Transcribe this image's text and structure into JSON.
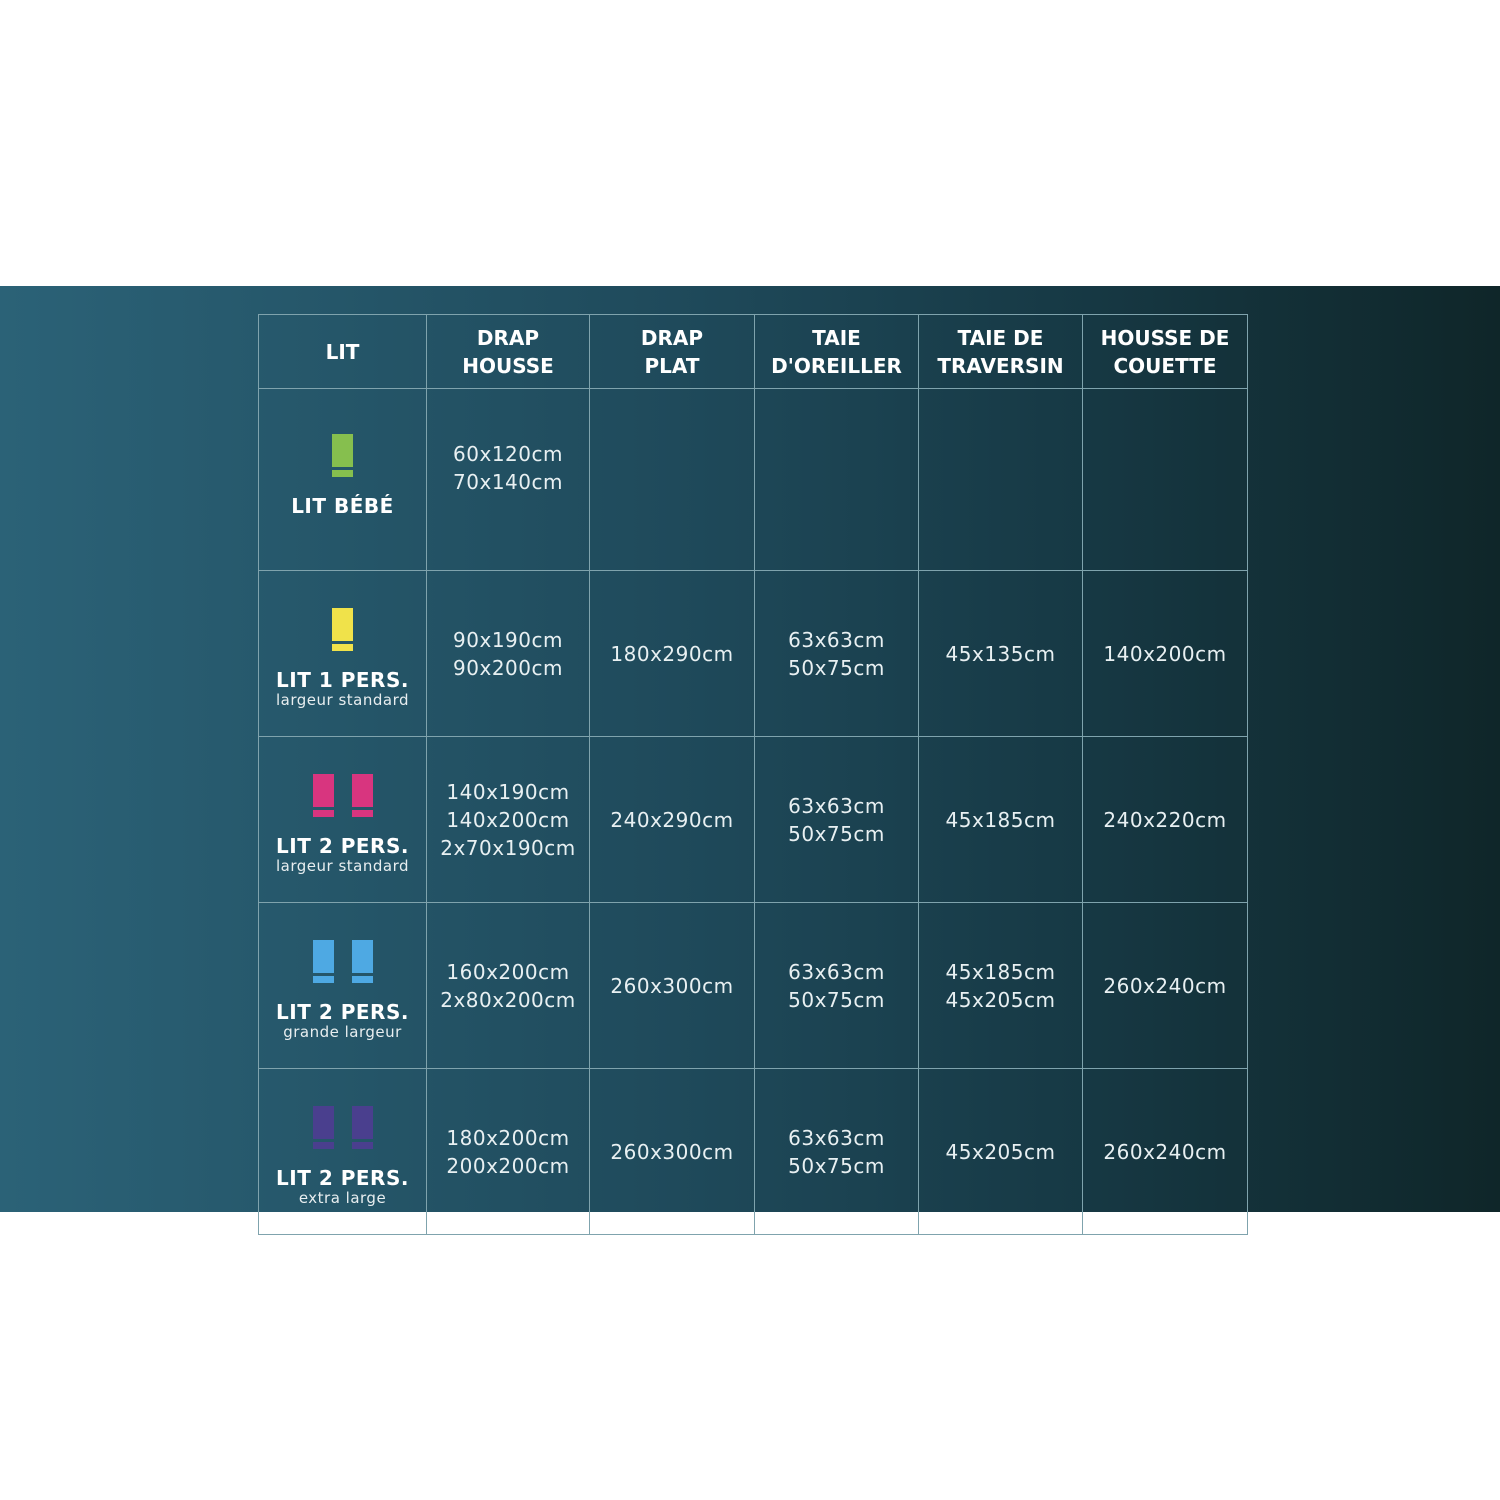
{
  "table": {
    "headers": [
      [
        "LIT"
      ],
      [
        "DRAP",
        "HOUSSE"
      ],
      [
        "DRAP",
        "PLAT"
      ],
      [
        "TAIE",
        "D'OREILLER"
      ],
      [
        "TAIE DE",
        "TRAVERSIN"
      ],
      [
        "HOUSSE DE",
        "COUETTE"
      ]
    ],
    "rows": [
      {
        "bed": "LIT BÉBÉ",
        "sub": "",
        "icon": "single-bed-icon",
        "icon_count": 1,
        "color": "#86bf4e",
        "cells": [
          [
            "60x120cm",
            "70x140cm"
          ],
          [],
          [],
          [],
          []
        ]
      },
      {
        "bed": "LIT 1 PERS.",
        "sub": "largeur standard",
        "icon": "single-bed-icon",
        "icon_count": 1,
        "color": "#f0e24a",
        "cells": [
          [
            "90x190cm",
            "90x200cm"
          ],
          [
            "180x290cm"
          ],
          [
            "63x63cm",
            "50x75cm"
          ],
          [
            "45x135cm"
          ],
          [
            "140x200cm"
          ]
        ]
      },
      {
        "bed": "LIT 2 PERS.",
        "sub": "largeur standard",
        "icon": "double-bed-icon",
        "icon_count": 2,
        "color": "#d8357f",
        "cells": [
          [
            "140x190cm",
            "140x200cm",
            "2x70x190cm"
          ],
          [
            "240x290cm"
          ],
          [
            "63x63cm",
            "50x75cm"
          ],
          [
            "45x185cm"
          ],
          [
            "240x220cm"
          ]
        ]
      },
      {
        "bed": "LIT 2 PERS.",
        "sub": "grande largeur",
        "icon": "double-bed-icon",
        "icon_count": 2,
        "color": "#4ea9e3",
        "cells": [
          [
            "160x200cm",
            "2x80x200cm"
          ],
          [
            "260x300cm"
          ],
          [
            "63x63cm",
            "50x75cm"
          ],
          [
            "45x185cm",
            "45x205cm"
          ],
          [
            "260x240cm"
          ]
        ]
      },
      {
        "bed": "LIT 2 PERS.",
        "sub": "extra large",
        "icon": "double-bed-icon",
        "icon_count": 2,
        "color": "#4a3f8e",
        "cells": [
          [
            "180x200cm",
            "200x200cm"
          ],
          [
            "260x300cm"
          ],
          [
            "63x63cm",
            "50x75cm"
          ],
          [
            "45x205cm"
          ],
          [
            "260x240cm"
          ]
        ]
      }
    ]
  }
}
